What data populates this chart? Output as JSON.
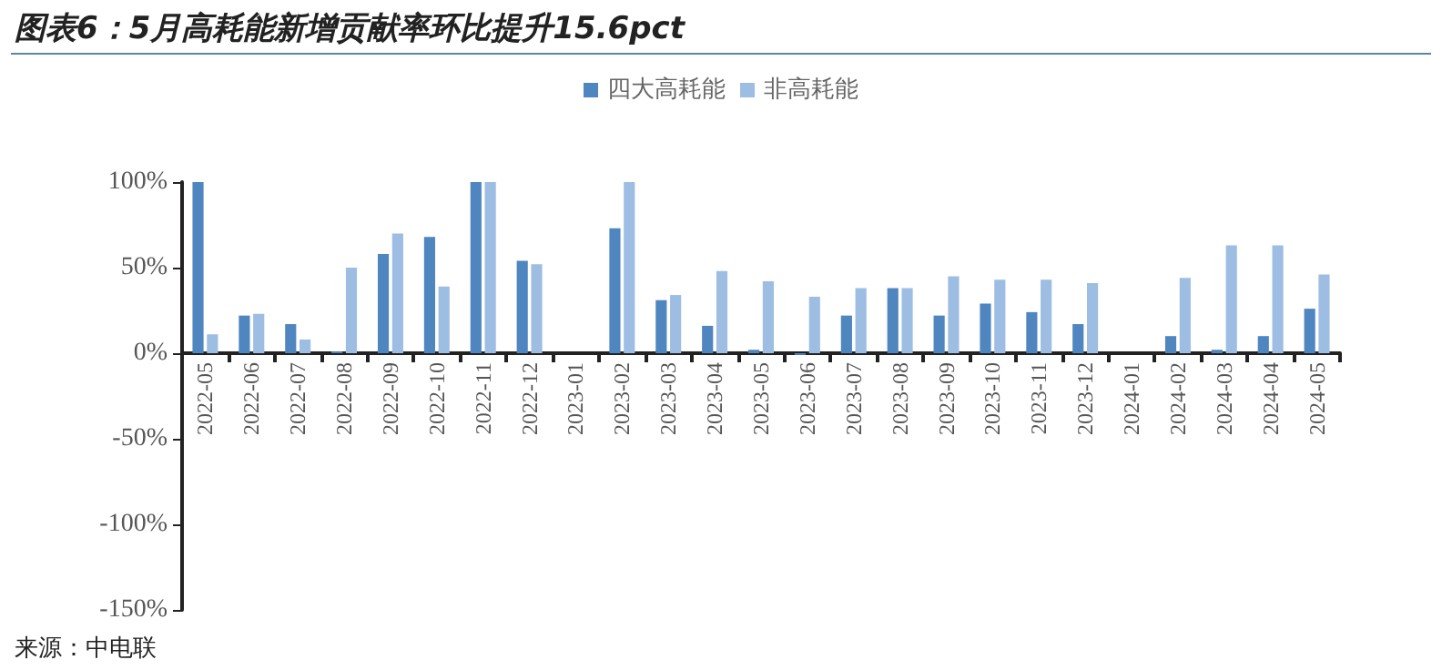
{
  "chart_data": {
    "type": "bar",
    "title": "图表6：5月高耗能新增贡献率环比提升15.6pct",
    "categories": [
      "2022-05",
      "2022-06",
      "2022-07",
      "2022-08",
      "2022-09",
      "2022-10",
      "2022-11",
      "2022-12",
      "2023-01",
      "2023-02",
      "2023-03",
      "2023-04",
      "2023-05",
      "2023-06",
      "2023-07",
      "2023-08",
      "2023-09",
      "2023-10",
      "2023-11",
      "2023-12",
      "2024-01",
      "2024-02",
      "2024-03",
      "2024-04",
      "2024-05"
    ],
    "series": [
      {
        "name": "四大高耗能",
        "color": "#4f86c0",
        "values": [
          100,
          22,
          17,
          1,
          58,
          68,
          100,
          54,
          null,
          73,
          31,
          16,
          2,
          -1,
          22,
          38,
          22,
          29,
          24,
          17,
          null,
          10,
          2,
          10,
          26
        ]
      },
      {
        "name": "非高耗能",
        "color": "#9dbde3",
        "values": [
          11,
          23,
          8,
          50,
          70,
          39,
          100,
          52,
          null,
          100,
          34,
          48,
          42,
          33,
          38,
          38,
          45,
          43,
          43,
          41,
          null,
          44,
          63,
          63,
          46
        ]
      }
    ],
    "ylim": [
      -150,
      100
    ],
    "yticks": [
      {
        "value": -150,
        "label": "-150%"
      },
      {
        "value": -100,
        "label": "-100%"
      },
      {
        "value": -50,
        "label": "-50%"
      },
      {
        "value": 0,
        "label": "0%"
      },
      {
        "value": 50,
        "label": "50%"
      },
      {
        "value": 100,
        "label": "100%"
      }
    ],
    "legend": "top",
    "annotations": [
      "来源：中电联"
    ]
  }
}
